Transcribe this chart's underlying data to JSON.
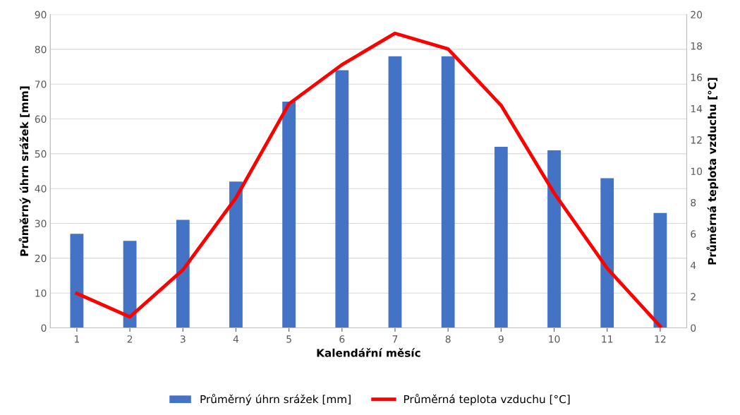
{
  "chart_data": {
    "type": "bar",
    "xlabel": "Kalendářní měsíc",
    "ylabel": "Průměrný úhrn srážek [mm]",
    "y2label": "Průměrná teplota vzduchu [°C]",
    "categories": [
      "1",
      "2",
      "3",
      "4",
      "5",
      "6",
      "7",
      "8",
      "9",
      "10",
      "11",
      "12"
    ],
    "series": [
      {
        "name": "Průměrný úhrn srážek [mm]",
        "color": "#4472c4",
        "values": [
          27,
          25,
          31,
          42,
          65,
          74,
          78,
          78,
          52,
          51,
          43,
          33
        ]
      },
      {
        "name": "Průměrná teplota vzduchu [°C]",
        "color": "#ff0000",
        "type": "line",
        "axis": "y2",
        "values": [
          2.2,
          0.7,
          3.7,
          8.3,
          14.3,
          16.8,
          18.8,
          17.8,
          14.2,
          8.6,
          3.8,
          0.1
        ]
      }
    ],
    "ylim": [
      0,
      90
    ],
    "yticks": [
      0,
      10,
      20,
      30,
      40,
      50,
      60,
      70,
      80,
      90
    ],
    "y2lim": [
      0,
      20
    ],
    "y2ticks": [
      0,
      2,
      4,
      6,
      8,
      10,
      12,
      14,
      16,
      18,
      20
    ],
    "grid": "y",
    "legend": "bottom",
    "marker": "none"
  }
}
